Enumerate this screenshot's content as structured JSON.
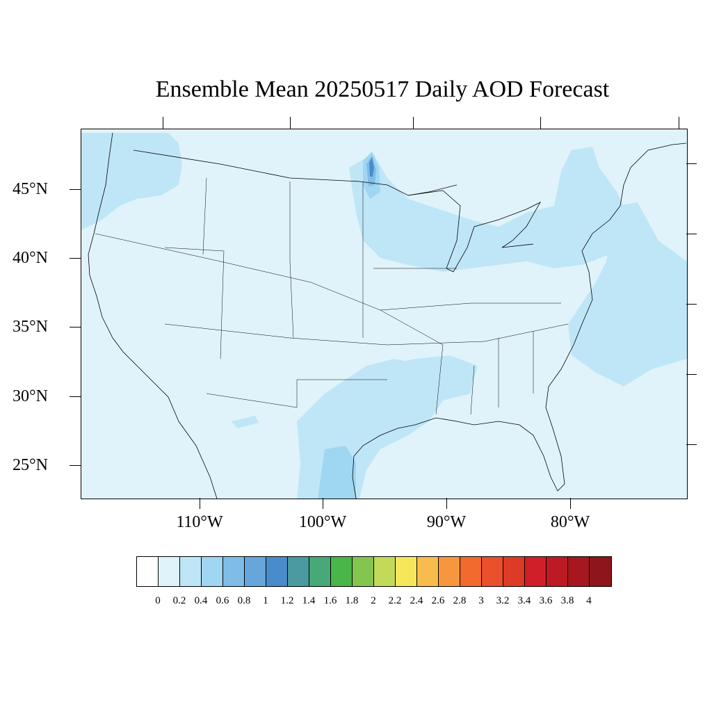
{
  "title": "Ensemble Mean 20250517 Daily AOD Forecast",
  "latitude_labels": [
    "45°N",
    "40°N",
    "35°N",
    "30°N",
    "25°N"
  ],
  "longitude_labels": [
    "110°W",
    "100°W",
    "90°W",
    "80°W"
  ],
  "colorbar": {
    "labels": [
      "0",
      "0.2",
      "0.4",
      "0.6",
      "0.8",
      "1",
      "1.2",
      "1.4",
      "1.6",
      "1.8",
      "2",
      "2.2",
      "2.4",
      "2.6",
      "2.8",
      "3",
      "3.2",
      "3.4",
      "3.6",
      "3.8",
      "4"
    ],
    "colors": [
      "#ffffff",
      "#e0f3fb",
      "#bfe6f7",
      "#9fd6f2",
      "#80bde6",
      "#66a6da",
      "#4a8ccb",
      "#4a9a9f",
      "#48a877",
      "#4ab549",
      "#84c54f",
      "#c3d95a",
      "#f6e75a",
      "#f7bd4c",
      "#f6973f",
      "#f26a2e",
      "#e9502b",
      "#de3a28",
      "#d11f29",
      "#bd1a24",
      "#a6171f",
      "#8e151b"
    ]
  }
}
